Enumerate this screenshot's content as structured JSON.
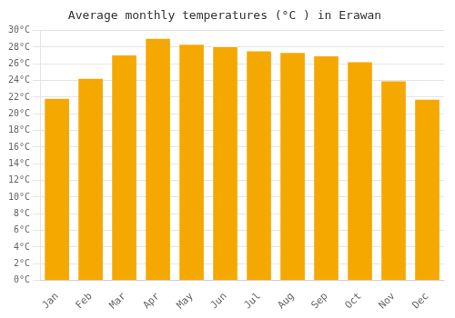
{
  "chart_data": {
    "type": "bar",
    "title": "Average monthly temperatures (°C ) in Erawan",
    "categories": [
      "Jan",
      "Feb",
      "Mar",
      "Apr",
      "May",
      "Jun",
      "Jul",
      "Aug",
      "Sep",
      "Oct",
      "Nov",
      "Dec"
    ],
    "values": [
      21.8,
      24.2,
      27.0,
      29.0,
      28.3,
      28.0,
      27.5,
      27.3,
      26.9,
      26.2,
      23.9,
      21.7
    ],
    "color": "#F5A800",
    "ylim": [
      0,
      30
    ],
    "yticks": [
      {
        "value": 0,
        "label": "0°C"
      },
      {
        "value": 2,
        "label": "2°C"
      },
      {
        "value": 4,
        "label": "4°C"
      },
      {
        "value": 6,
        "label": "6°C"
      },
      {
        "value": 8,
        "label": "8°C"
      },
      {
        "value": 10,
        "label": "10°C"
      },
      {
        "value": 12,
        "label": "12°C"
      },
      {
        "value": 14,
        "label": "14°C"
      },
      {
        "value": 16,
        "label": "16°C"
      },
      {
        "value": 18,
        "label": "18°C"
      },
      {
        "value": 20,
        "label": "20°C"
      },
      {
        "value": 22,
        "label": "22°C"
      },
      {
        "value": 24,
        "label": "24°C"
      },
      {
        "value": 26,
        "label": "26°C"
      },
      {
        "value": 28,
        "label": "28°C"
      },
      {
        "value": 30,
        "label": "30°C"
      }
    ],
    "grid": true
  }
}
